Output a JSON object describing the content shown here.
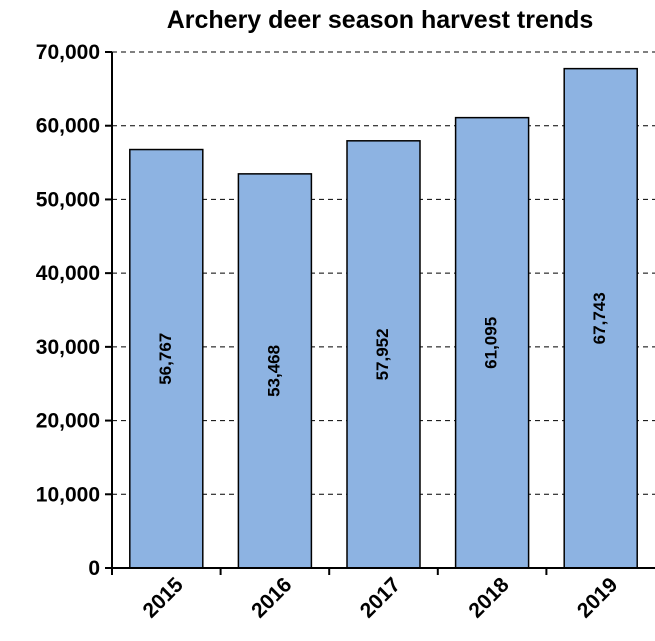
{
  "chart_data": {
    "type": "bar",
    "title": "Archery deer season harvest trends",
    "categories": [
      "2015",
      "2016",
      "2017",
      "2018",
      "2019"
    ],
    "values": [
      56767,
      53468,
      57952,
      61095,
      67743
    ],
    "data_labels": [
      "56,767",
      "53,468",
      "57,952",
      "61,095",
      "67,743"
    ],
    "ylim": [
      0,
      70000
    ],
    "yticks": [
      0,
      10000,
      20000,
      30000,
      40000,
      50000,
      60000,
      70000
    ],
    "ytick_labels": [
      "0",
      "10,000",
      "20,000",
      "30,000",
      "40,000",
      "50,000",
      "60,000",
      "70,000"
    ],
    "xlabel": "",
    "ylabel": "",
    "grid": "horizontal dashed",
    "bar_color": "#8db3e2",
    "bar_edge_color": "#000000"
  }
}
